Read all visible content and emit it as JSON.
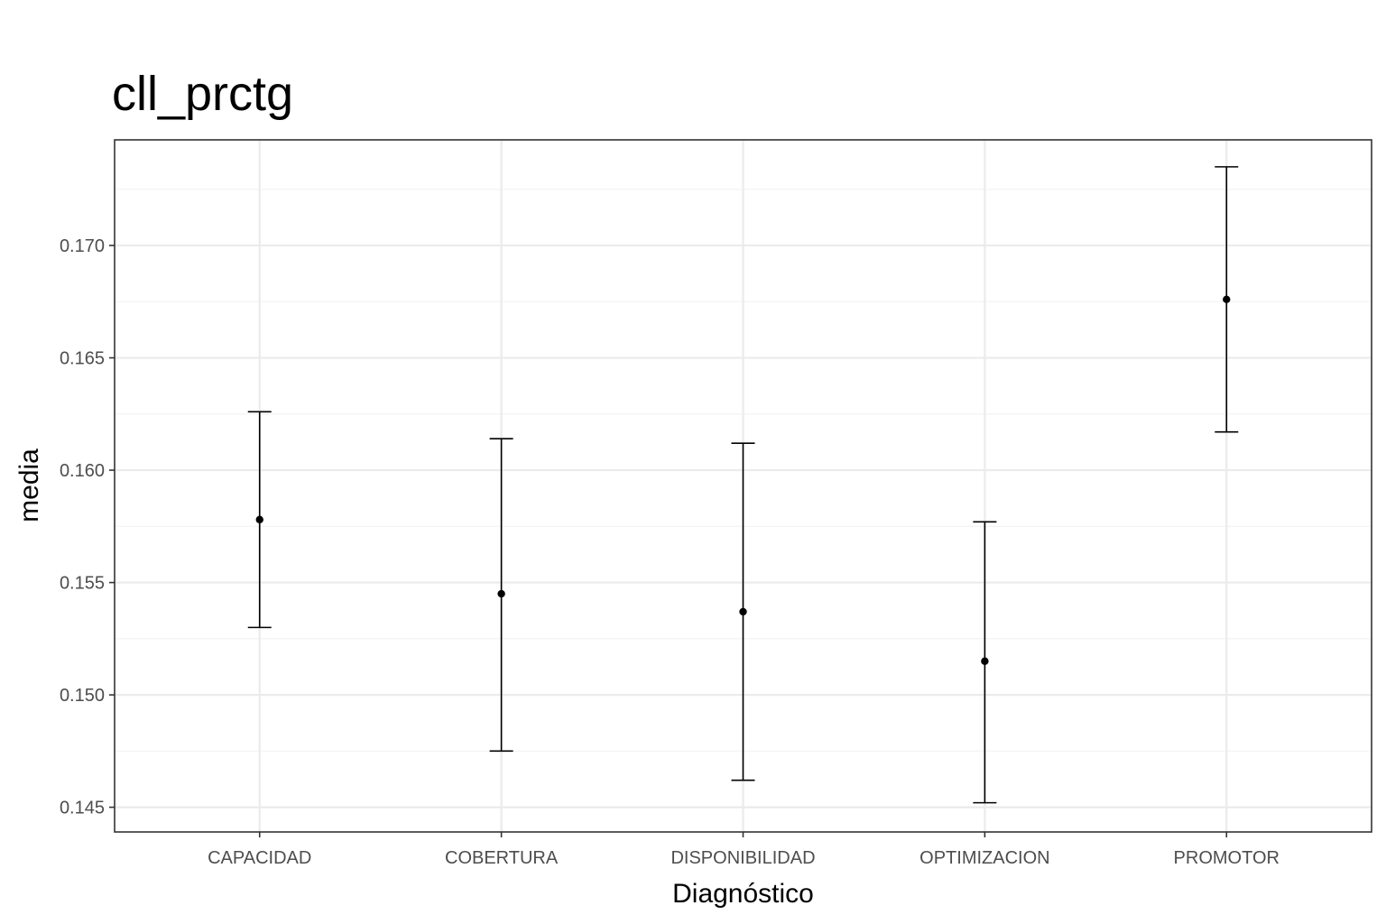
{
  "chart_data": {
    "type": "errorbar",
    "title": "cll_prctg",
    "xlabel": "Diagnóstico",
    "ylabel": "media",
    "categories": [
      "CAPACIDAD",
      "COBERTURA",
      "DISPONIBILIDAD",
      "OPTIMIZACION",
      "PROMOTOR"
    ],
    "means": [
      0.1578,
      0.1545,
      0.1537,
      0.1515,
      0.1676
    ],
    "lower": [
      0.153,
      0.1475,
      0.1462,
      0.1452,
      0.1617
    ],
    "upper": [
      0.1626,
      0.1614,
      0.1612,
      0.1577,
      0.1735
    ],
    "y_ticks": [
      "0.145",
      "0.150",
      "0.155",
      "0.160",
      "0.165",
      "0.170"
    ],
    "ylim": [
      0.1439,
      0.1747
    ],
    "grid": true,
    "legend": "none",
    "colors": {
      "point": "#000000",
      "grid": "#ebebeb",
      "border": "#333333"
    }
  }
}
